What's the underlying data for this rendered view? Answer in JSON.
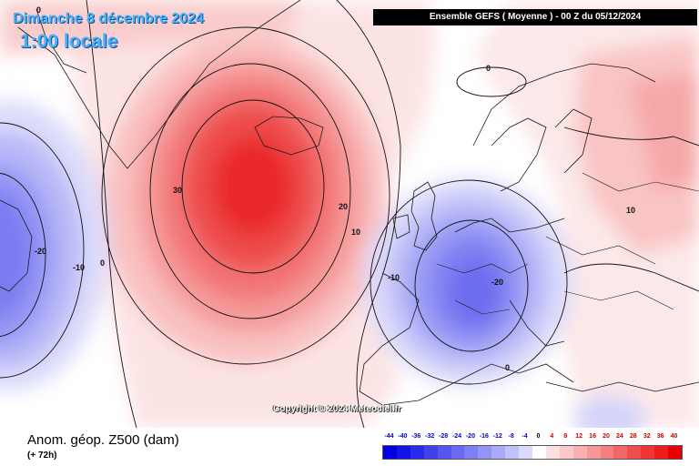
{
  "header": {
    "date": "Dimanche 8 décembre 2024",
    "time": "1:00 locale",
    "model_box": "Ensemble GEFS  ( Moyenne )  -  00 Z du 05/12/2024"
  },
  "footer": {
    "field_title": "Anom. géop. Z500 (dam)",
    "lead_time": "(+ 72h)",
    "copyright": "Copyright © 2024 Meteociel.fr"
  },
  "legend": {
    "labels": [
      "-44",
      "-40",
      "-36",
      "-32",
      "-28",
      "-24",
      "-20",
      "-16",
      "-12",
      "-8",
      "-4",
      "0",
      "4",
      "8",
      "12",
      "16",
      "20",
      "24",
      "28",
      "32",
      "36",
      "40"
    ],
    "colors": [
      "#0000e0",
      "#1414e6",
      "#2a2ae9",
      "#4141ec",
      "#5656ef",
      "#6a6af2",
      "#7f7ff4",
      "#9494f6",
      "#aaaaf8",
      "#c2c2fb",
      "#dadafc",
      "#ffffff",
      "#fde0e0",
      "#fbc8c8",
      "#f9b0b0",
      "#f79898",
      "#f58080",
      "#f36666",
      "#f04d4d",
      "#ee3434",
      "#ec1c1c",
      "#e80000"
    ]
  },
  "contour_labels": [
    {
      "text": "0",
      "id": "north-atlantic-top"
    },
    {
      "text": "0",
      "id": "scandinavia-north"
    },
    {
      "text": "30",
      "id": "high-center"
    },
    {
      "text": "20",
      "id": "high-east"
    },
    {
      "text": "10",
      "id": "biscay"
    },
    {
      "text": "-20",
      "id": "west-low"
    },
    {
      "text": "-10",
      "id": "west-low-east"
    },
    {
      "text": "0",
      "id": "west-zero"
    },
    {
      "text": "-10",
      "id": "europe-low-west"
    },
    {
      "text": "-20",
      "id": "europe-low-center"
    },
    {
      "text": "10",
      "id": "russia"
    },
    {
      "text": "0",
      "id": "mediterranean"
    }
  ]
}
